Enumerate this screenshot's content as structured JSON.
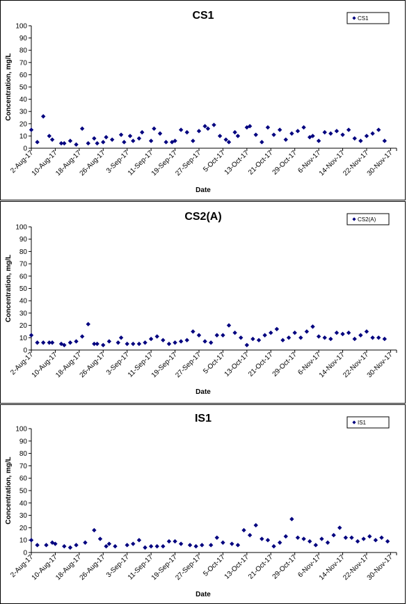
{
  "chart_data": [
    {
      "type": "scatter",
      "title": "CS1",
      "xlabel": "Date",
      "ylabel": "Concentration, mg/L",
      "ylim": [
        0,
        100
      ],
      "yticks": [
        0,
        10,
        20,
        30,
        40,
        50,
        60,
        70,
        80,
        90,
        100
      ],
      "xlim": [
        "2017-08-02",
        "2017-12-02"
      ],
      "xtick_labels": [
        "2-Aug-17",
        "10-Aug-17",
        "18-Aug-17",
        "26-Aug-17",
        "3-Sep-17",
        "11-Sep-17",
        "19-Sep-17",
        "27-Sep-17",
        "5-Oct-17",
        "13-Oct-17",
        "21-Oct-17",
        "29-Oct-17",
        "6-Nov-17",
        "14-Nov-17",
        "22-Nov-17",
        "30-Nov-17"
      ],
      "legend_position": "top-right",
      "grid": false,
      "series": [
        {
          "name": "CS1",
          "x": [
            "2017-08-02",
            "2017-08-04",
            "2017-08-06",
            "2017-08-08",
            "2017-08-09",
            "2017-08-12",
            "2017-08-13",
            "2017-08-15",
            "2017-08-17",
            "2017-08-19",
            "2017-08-21",
            "2017-08-23",
            "2017-08-24",
            "2017-08-26",
            "2017-08-27",
            "2017-08-29",
            "2017-09-01",
            "2017-09-02",
            "2017-09-04",
            "2017-09-05",
            "2017-09-07",
            "2017-09-08",
            "2017-09-11",
            "2017-09-12",
            "2017-09-14",
            "2017-09-16",
            "2017-09-18",
            "2017-09-19",
            "2017-09-21",
            "2017-09-23",
            "2017-09-25",
            "2017-09-27",
            "2017-09-29",
            "2017-09-30",
            "2017-10-02",
            "2017-10-04",
            "2017-10-06",
            "2017-10-07",
            "2017-10-09",
            "2017-10-10",
            "2017-10-13",
            "2017-10-14",
            "2017-10-16",
            "2017-10-18",
            "2017-10-20",
            "2017-10-22",
            "2017-10-24",
            "2017-10-26",
            "2017-10-28",
            "2017-10-30",
            "2017-11-01",
            "2017-11-03",
            "2017-11-04",
            "2017-11-06",
            "2017-11-08",
            "2017-11-10",
            "2017-11-12",
            "2017-11-14",
            "2017-11-16",
            "2017-11-18",
            "2017-11-20",
            "2017-11-22",
            "2017-11-24",
            "2017-11-26",
            "2017-11-28"
          ],
          "y": [
            15,
            5,
            26,
            10,
            7,
            4,
            4,
            6,
            3,
            16,
            4,
            8,
            4,
            5,
            9,
            7,
            11,
            5,
            10,
            6,
            8,
            13,
            6,
            16,
            12,
            5,
            5,
            6,
            15,
            13,
            6,
            14,
            18,
            16,
            19,
            10,
            7,
            5,
            13,
            10,
            17,
            18,
            11,
            5,
            17,
            11,
            15,
            7,
            12,
            14,
            17,
            9,
            10,
            6,
            13,
            12,
            14,
            11,
            15,
            8,
            6,
            10,
            12,
            15,
            6
          ]
        }
      ]
    },
    {
      "type": "scatter",
      "title": "CS2(A)",
      "xlabel": "Date",
      "ylabel": "Concentration, mg/L",
      "ylim": [
        0,
        100
      ],
      "yticks": [
        0,
        10,
        20,
        30,
        40,
        50,
        60,
        70,
        80,
        90,
        100
      ],
      "xlim": [
        "2017-08-02",
        "2017-12-02"
      ],
      "xtick_labels": [
        "2-Aug-17",
        "10-Aug-17",
        "18-Aug-17",
        "26-Aug-17",
        "3-Sep-17",
        "11-Sep-17",
        "19-Sep-17",
        "27-Sep-17",
        "5-Oct-17",
        "13-Oct-17",
        "21-Oct-17",
        "29-Oct-17",
        "6-Nov-17",
        "14-Nov-17",
        "22-Nov-17",
        "30-Nov-17"
      ],
      "legend_position": "top-right",
      "grid": false,
      "series": [
        {
          "name": "CS2(A)",
          "x": [
            "2017-08-02",
            "2017-08-04",
            "2017-08-06",
            "2017-08-08",
            "2017-08-09",
            "2017-08-12",
            "2017-08-13",
            "2017-08-15",
            "2017-08-17",
            "2017-08-19",
            "2017-08-21",
            "2017-08-23",
            "2017-08-24",
            "2017-08-26",
            "2017-08-28",
            "2017-08-31",
            "2017-09-01",
            "2017-09-03",
            "2017-09-05",
            "2017-09-07",
            "2017-09-09",
            "2017-09-11",
            "2017-09-13",
            "2017-09-15",
            "2017-09-17",
            "2017-09-19",
            "2017-09-21",
            "2017-09-23",
            "2017-09-25",
            "2017-09-27",
            "2017-09-29",
            "2017-10-01",
            "2017-10-03",
            "2017-10-05",
            "2017-10-07",
            "2017-10-09",
            "2017-10-11",
            "2017-10-13",
            "2017-10-15",
            "2017-10-17",
            "2017-10-19",
            "2017-10-21",
            "2017-10-23",
            "2017-10-25",
            "2017-10-27",
            "2017-10-29",
            "2017-10-31",
            "2017-11-02",
            "2017-11-04",
            "2017-11-06",
            "2017-11-08",
            "2017-11-10",
            "2017-11-12",
            "2017-11-14",
            "2017-11-16",
            "2017-11-18",
            "2017-11-20",
            "2017-11-22",
            "2017-11-24",
            "2017-11-26",
            "2017-11-28"
          ],
          "y": [
            12,
            6,
            6,
            6,
            6,
            5,
            4,
            6,
            7,
            11,
            21,
            5,
            5,
            4,
            7,
            6,
            10,
            5,
            5,
            5,
            6,
            9,
            11,
            8,
            5,
            6,
            7,
            8,
            15,
            12,
            7,
            6,
            12,
            12,
            20,
            14,
            10,
            4,
            9,
            8,
            12,
            14,
            17,
            8,
            10,
            14,
            10,
            15,
            19,
            11,
            10,
            9,
            14,
            13,
            14,
            9,
            12,
            15,
            10,
            10,
            9
          ]
        }
      ]
    },
    {
      "type": "scatter",
      "title": "IS1",
      "xlabel": "Date",
      "ylabel": "Concentration, mg/L",
      "ylim": [
        0,
        100
      ],
      "yticks": [
        0,
        10,
        20,
        30,
        40,
        50,
        60,
        70,
        80,
        90,
        100
      ],
      "xlim": [
        "2017-08-02",
        "2017-12-02"
      ],
      "xtick_labels": [
        "2-Aug-17",
        "10-Aug-17",
        "18-Aug-17",
        "26-Aug-17",
        "3-Sep-17",
        "11-Sep-17",
        "19-Sep-17",
        "27-Sep-17",
        "5-Oct-17",
        "13-Oct-17",
        "21-Oct-17",
        "29-Oct-17",
        "6-Nov-17",
        "14-Nov-17",
        "22-Nov-17",
        "30-Nov-17"
      ],
      "legend_position": "top-right",
      "grid": false,
      "series": [
        {
          "name": "IS1",
          "x": [
            "2017-08-02",
            "2017-08-04",
            "2017-08-07",
            "2017-08-09",
            "2017-08-10",
            "2017-08-13",
            "2017-08-15",
            "2017-08-17",
            "2017-08-20",
            "2017-08-23",
            "2017-08-25",
            "2017-08-27",
            "2017-08-28",
            "2017-08-30",
            "2017-09-03",
            "2017-09-05",
            "2017-09-07",
            "2017-09-09",
            "2017-09-11",
            "2017-09-13",
            "2017-09-15",
            "2017-09-17",
            "2017-09-19",
            "2017-09-21",
            "2017-09-24",
            "2017-09-26",
            "2017-09-28",
            "2017-10-01",
            "2017-10-03",
            "2017-10-05",
            "2017-10-08",
            "2017-10-10",
            "2017-10-12",
            "2017-10-14",
            "2017-10-16",
            "2017-10-18",
            "2017-10-20",
            "2017-10-22",
            "2017-10-24",
            "2017-10-26",
            "2017-10-28",
            "2017-10-30",
            "2017-11-01",
            "2017-11-03",
            "2017-11-05",
            "2017-11-07",
            "2017-11-09",
            "2017-11-11",
            "2017-11-13",
            "2017-11-15",
            "2017-11-17",
            "2017-11-19",
            "2017-11-21",
            "2017-11-23",
            "2017-11-25",
            "2017-11-27",
            "2017-11-29"
          ],
          "y": [
            10,
            6,
            6,
            8,
            7,
            5,
            4,
            6,
            8,
            18,
            11,
            5,
            7,
            5,
            6,
            7,
            10,
            4,
            5,
            5,
            5,
            9,
            9,
            7,
            6,
            5,
            6,
            6,
            12,
            8,
            7,
            6,
            18,
            14,
            22,
            11,
            10,
            5,
            8,
            13,
            27,
            12,
            11,
            9,
            6,
            11,
            8,
            14,
            20,
            12,
            12,
            9,
            11,
            13,
            10,
            12,
            9
          ]
        }
      ]
    }
  ],
  "colors": {
    "marker": "#00007f",
    "axis": "#000000",
    "background": "#ffffff"
  },
  "legend_icon": "diamond-marker-icon"
}
